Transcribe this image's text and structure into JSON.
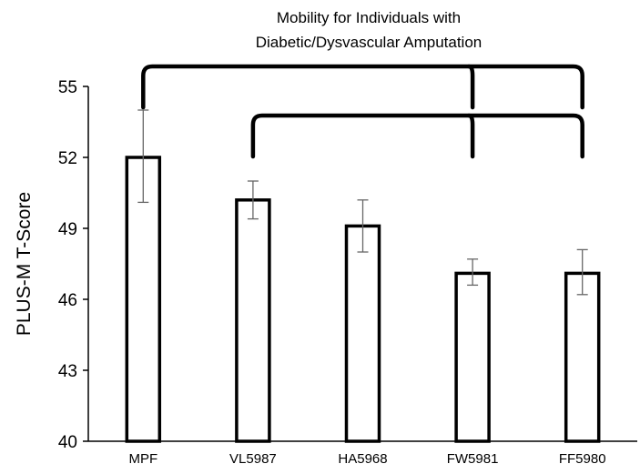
{
  "chart_data": {
    "type": "bar",
    "title_lines": [
      "Mobility for Individuals with",
      "Diabetic/Dysvascular Amputation"
    ],
    "xlabel": "",
    "ylabel": "PLUS-M T-Score",
    "ylim": [
      40,
      55
    ],
    "yticks": [
      "40",
      "43",
      "46",
      "49",
      "52",
      "55"
    ],
    "categories": [
      "MPF",
      "VL5987",
      "HA5968",
      "FW5981",
      "FF5980"
    ],
    "values": [
      52.0,
      50.2,
      49.1,
      47.1,
      47.1
    ],
    "errors": [
      {
        "low": 50.1,
        "high": 54.0
      },
      {
        "low": 49.4,
        "high": 51.0
      },
      {
        "low": 48.0,
        "high": 50.2
      },
      {
        "low": 46.6,
        "high": 47.7
      },
      {
        "low": 46.2,
        "high": 48.1
      }
    ],
    "comparisons": [
      {
        "from": "MPF",
        "to": [
          "FW5981",
          "FF5980"
        ]
      },
      {
        "from": "VL5987",
        "to": [
          "FW5981",
          "FF5980"
        ]
      }
    ],
    "grid": false,
    "legend": "none",
    "bar_fill": "#ffffff",
    "bar_stroke": "#000000",
    "error_color": "#666666"
  }
}
